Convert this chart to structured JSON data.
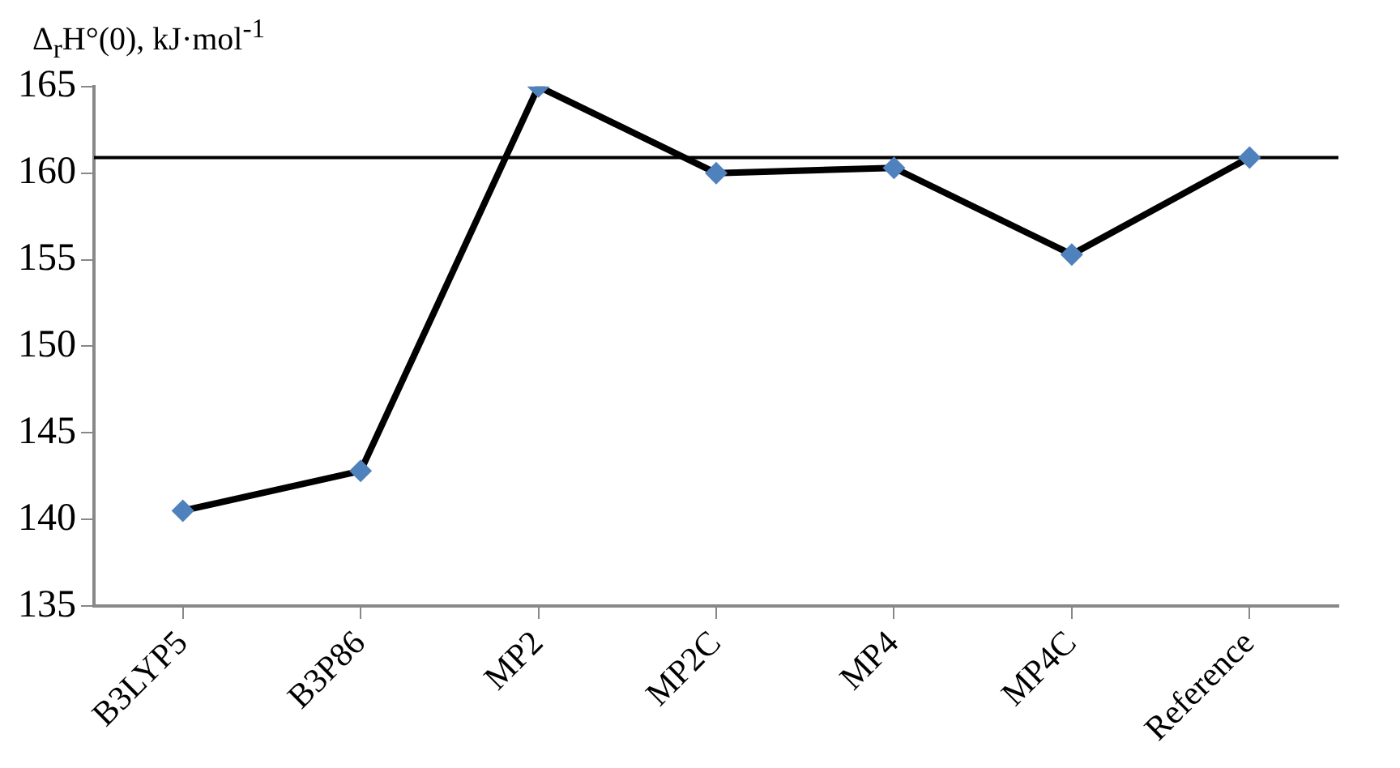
{
  "chart_data": {
    "type": "line",
    "ylabel": "Δ$_{r}$H°(0), kJ·mol$^{-1}$",
    "categories": [
      "B3LYP5",
      "B3P86",
      "MP2",
      "MP2C",
      "MP4",
      "MP4C",
      "Reference"
    ],
    "series": [
      {
        "color": "#4f81bd",
        "values": [
          140.5,
          142.8,
          165.0,
          160.0,
          160.3,
          155.3,
          160.9
        ]
      }
    ],
    "ylim": [
      135,
      165
    ],
    "yticks": [
      135,
      140,
      145,
      150,
      155,
      160,
      165
    ],
    "ref_lines": [
      {
        "axis": "y",
        "value": 160.9,
        "color": "#000000"
      }
    ],
    "marker": "diamond",
    "line_style": "solid"
  }
}
